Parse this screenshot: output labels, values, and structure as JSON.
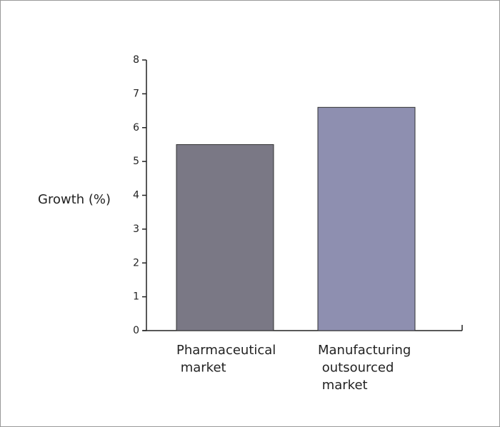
{
  "chart_data": {
    "type": "bar",
    "y_label": "Growth (%)",
    "categories": [
      "Pharmaceutical market",
      "Manufacturing outsourced market"
    ],
    "values": [
      5.5,
      6.6
    ],
    "colors": [
      "#7a7885",
      "#8e8fb0"
    ],
    "ylim": [
      0,
      8
    ],
    "yticks": [
      0,
      1,
      2,
      3,
      4,
      5,
      6,
      7,
      8
    ]
  }
}
